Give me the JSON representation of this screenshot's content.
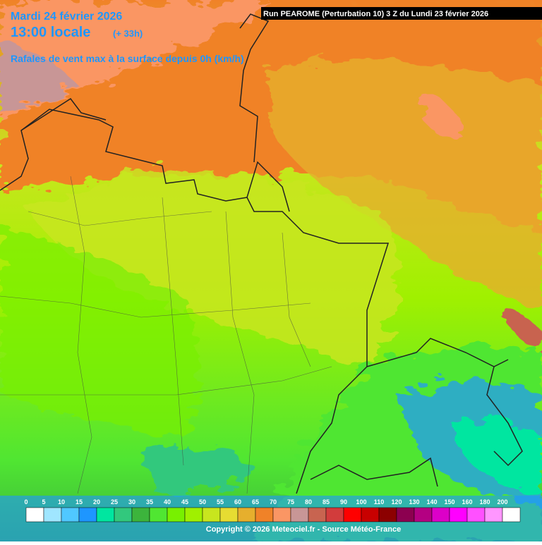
{
  "header": {
    "date": "Mardi 24 février 2026",
    "time": "13:00 locale",
    "offset": "(+ 33h)",
    "subtitle": "Rafales de vent max à la surface depuis 0h (km/h)",
    "run": "Run PEAROME (Perturbation 10) 3 Z du Lundi 23 février 2026"
  },
  "legend": {
    "labels": [
      "0",
      "5",
      "10",
      "15",
      "20",
      "25",
      "30",
      "35",
      "40",
      "45",
      "50",
      "55",
      "60",
      "65",
      "70",
      "75",
      "80",
      "85",
      "90",
      "100",
      "110",
      "120",
      "130",
      "140",
      "150",
      "160",
      "180",
      "200"
    ],
    "colors": [
      "#ffffff",
      "#a0e6ff",
      "#50c8ff",
      "#1e96ff",
      "#00e6a0",
      "#32c87d",
      "#3cb43c",
      "#50e632",
      "#78f000",
      "#a0f000",
      "#c8e61e",
      "#e6dc32",
      "#e6af2d",
      "#f08228",
      "#fa9664",
      "#c89696",
      "#c86450",
      "#d23c3c",
      "#ff0000",
      "#c80000",
      "#8c0000",
      "#8c0050",
      "#b40082",
      "#dc00c8",
      "#ff00ff",
      "#ff50ff",
      "#ff96ff",
      "#ffffff"
    ]
  },
  "copyright": "Copyright © 2026 Meteociel.fr - Source Météo-France"
}
